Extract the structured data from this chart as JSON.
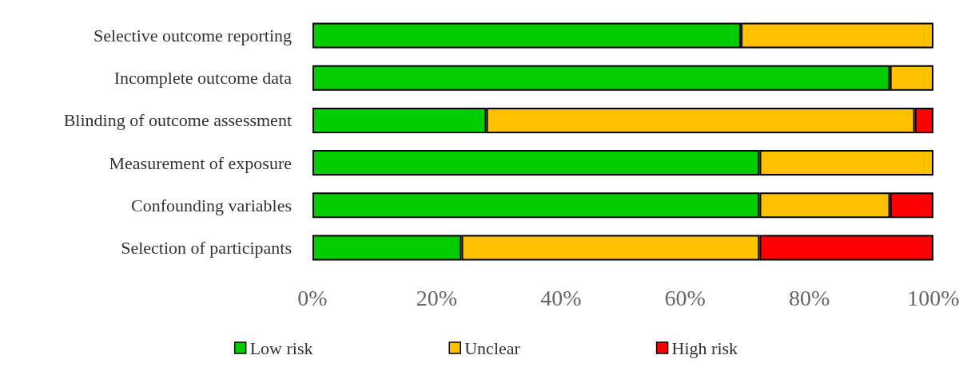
{
  "chart_data": {
    "type": "bar",
    "orientation": "horizontal",
    "stacked": true,
    "categories": [
      "Selective outcome reporting",
      "Incomplete outcome data",
      "Blinding of outcome assessment",
      "Measurement of exposure",
      "Confounding variables",
      "Selection of participants"
    ],
    "series": [
      {
        "name": "Low risk",
        "color": "#00cc00",
        "values": [
          69,
          93,
          28,
          72,
          72,
          24
        ]
      },
      {
        "name": "Unclear",
        "color": "#ffc000",
        "values": [
          31,
          7,
          69,
          28,
          21,
          48
        ]
      },
      {
        "name": "High risk",
        "color": "#ff0000",
        "values": [
          0,
          0,
          3,
          0,
          7,
          28
        ]
      }
    ],
    "xlim": [
      0,
      100
    ],
    "xticks": [
      {
        "value": 0,
        "label": "0%"
      },
      {
        "value": 20,
        "label": "20%"
      },
      {
        "value": 40,
        "label": "40%"
      },
      {
        "value": 60,
        "label": "60%"
      },
      {
        "value": 80,
        "label": "80%"
      },
      {
        "value": 100,
        "label": "100%"
      }
    ],
    "grid": false,
    "legend": "bottom"
  }
}
